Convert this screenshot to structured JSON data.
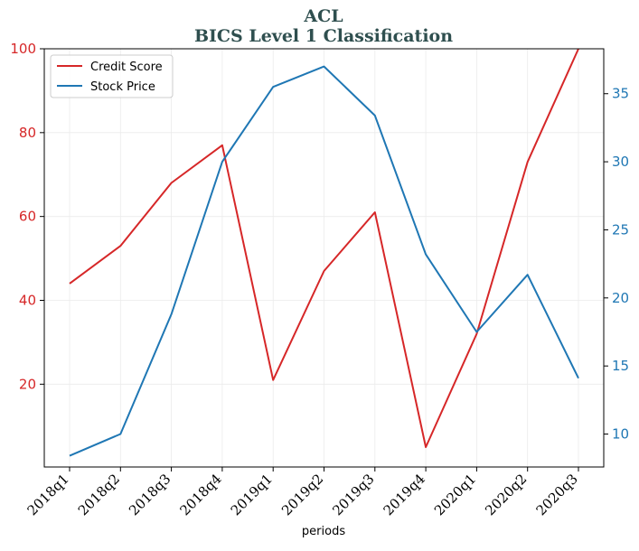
{
  "chart_data": {
    "type": "line",
    "title": "ACL",
    "subtitle": "BICS Level 1 Classification",
    "xlabel": "periods",
    "ylabel": "",
    "ylabel_right": "",
    "categories": [
      "2018q1",
      "2018q2",
      "2018q3",
      "2018q4",
      "2019q1",
      "2019q2",
      "2019q3",
      "2019q4",
      "2020q1",
      "2020q2",
      "2020q3"
    ],
    "series": [
      {
        "name": "Credit Score",
        "axis": "left",
        "color": "#d62728",
        "values": [
          44,
          53,
          68,
          77,
          21,
          47,
          61,
          5,
          32,
          73,
          100
        ]
      },
      {
        "name": "Stock Price",
        "axis": "right",
        "color": "#1f77b4",
        "values": [
          8.4,
          10.0,
          18.8,
          30.0,
          35.5,
          37.0,
          33.4,
          23.2,
          17.5,
          21.7,
          14.1
        ]
      }
    ],
    "left_axis": {
      "ylim": [
        0.25,
        100
      ],
      "ticks": [
        20,
        40,
        60,
        80,
        100
      ],
      "color": "#d62728"
    },
    "right_axis": {
      "ylim": [
        7.58,
        38.3
      ],
      "ticks": [
        10,
        15,
        20,
        25,
        30,
        35
      ],
      "color": "#1f77b4"
    },
    "grid": true,
    "legend_position": "top-left",
    "title_color": "#2f4f4f"
  }
}
